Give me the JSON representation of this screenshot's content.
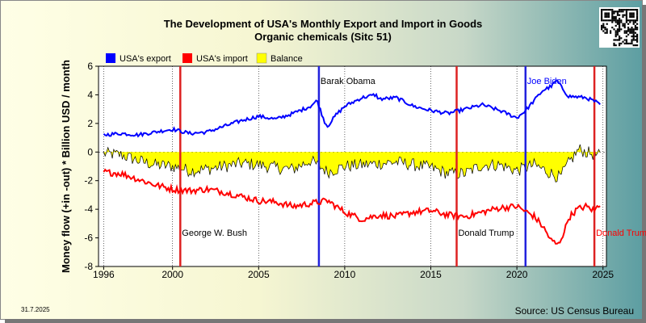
{
  "chart_data": {
    "type": "line",
    "title": "The Development of USA's Monthly Export and Import in Goods",
    "subtitle": "Organic chemicals (Sitc 51)",
    "ylabel": "Money flow (+in -out) * Billion USD / month",
    "xlabel": "",
    "xlim": [
      1995.7,
      2025.2
    ],
    "ylim": [
      -8,
      6
    ],
    "x_ticks": [
      "1996",
      "2000",
      "2005",
      "2010",
      "2015",
      "2020",
      "2025"
    ],
    "y_ticks": [
      "6",
      "4",
      "2",
      "0",
      "-2",
      "-4",
      "-6",
      "-8"
    ],
    "legend_position": "top-left",
    "grid": "vertical dotted at year marks",
    "series": [
      {
        "name": "USA's export",
        "color": "#0000ff",
        "points": [
          [
            1996,
            1.2
          ],
          [
            1997,
            1.3
          ],
          [
            1998,
            1.2
          ],
          [
            1999,
            1.4
          ],
          [
            2000,
            1.6
          ],
          [
            2001,
            1.3
          ],
          [
            2002,
            1.4
          ],
          [
            2003,
            1.8
          ],
          [
            2004,
            2.2
          ],
          [
            2005,
            2.5
          ],
          [
            2006,
            2.3
          ],
          [
            2007,
            2.7
          ],
          [
            2008,
            3.2
          ],
          [
            2008.4,
            3.6
          ],
          [
            2008.8,
            2.2
          ],
          [
            2009,
            1.8
          ],
          [
            2009.5,
            2.6
          ],
          [
            2010,
            3.2
          ],
          [
            2011,
            3.8
          ],
          [
            2011.8,
            4.0
          ],
          [
            2012,
            3.7
          ],
          [
            2013,
            3.8
          ],
          [
            2014,
            3.2
          ],
          [
            2015,
            2.9
          ],
          [
            2016,
            2.7
          ],
          [
            2017,
            3.0
          ],
          [
            2018,
            3.3
          ],
          [
            2019,
            2.9
          ],
          [
            2019.8,
            2.5
          ],
          [
            2020,
            2.4
          ],
          [
            2020.5,
            2.9
          ],
          [
            2021,
            3.6
          ],
          [
            2021.5,
            4.3
          ],
          [
            2022,
            4.6
          ],
          [
            2022.3,
            5.0
          ],
          [
            2022.8,
            4.2
          ],
          [
            2023,
            3.9
          ],
          [
            2024,
            3.8
          ],
          [
            2024.6,
            3.5
          ],
          [
            2024.9,
            3.2
          ]
        ]
      },
      {
        "name": "USA's import",
        "color": "#ff0000",
        "points": [
          [
            1996,
            -1.4
          ],
          [
            1997,
            -1.5
          ],
          [
            1998,
            -1.9
          ],
          [
            1999,
            -2.3
          ],
          [
            2000,
            -2.6
          ],
          [
            2001,
            -2.7
          ],
          [
            2002,
            -2.6
          ],
          [
            2003,
            -2.8
          ],
          [
            2004,
            -3.1
          ],
          [
            2005,
            -3.4
          ],
          [
            2006,
            -3.5
          ],
          [
            2007,
            -3.8
          ],
          [
            2008,
            -3.6
          ],
          [
            2009,
            -3.4
          ],
          [
            2010,
            -4.2
          ],
          [
            2011,
            -4.7
          ],
          [
            2012,
            -4.4
          ],
          [
            2013,
            -4.5
          ],
          [
            2014,
            -4.2
          ],
          [
            2015,
            -4.1
          ],
          [
            2016,
            -4.4
          ],
          [
            2017,
            -4.5
          ],
          [
            2018,
            -4.2
          ],
          [
            2019,
            -3.9
          ],
          [
            2020,
            -3.8
          ],
          [
            2021,
            -4.5
          ],
          [
            2021.5,
            -5.2
          ],
          [
            2022,
            -6.2
          ],
          [
            2022.4,
            -6.5
          ],
          [
            2022.8,
            -5.4
          ],
          [
            2023,
            -4.6
          ],
          [
            2023.5,
            -4.0
          ],
          [
            2024,
            -3.8
          ],
          [
            2024.5,
            -4.1
          ],
          [
            2024.9,
            -3.5
          ]
        ]
      },
      {
        "name": "Balance",
        "color": "#ffff00",
        "points": [
          [
            1996,
            -0.1
          ],
          [
            1997,
            -0.2
          ],
          [
            1998,
            -0.6
          ],
          [
            1999,
            -0.9
          ],
          [
            2000,
            -1.0
          ],
          [
            2001,
            -1.3
          ],
          [
            2002,
            -1.2
          ],
          [
            2003,
            -1.0
          ],
          [
            2004,
            -0.8
          ],
          [
            2005,
            -0.9
          ],
          [
            2006,
            -1.1
          ],
          [
            2007,
            -1.2
          ],
          [
            2008,
            -0.6
          ],
          [
            2008.8,
            -1.2
          ],
          [
            2009,
            -1.4
          ],
          [
            2010,
            -1.0
          ],
          [
            2011,
            -0.9
          ],
          [
            2012,
            -0.8
          ],
          [
            2013,
            -0.7
          ],
          [
            2014,
            -0.9
          ],
          [
            2015,
            -1.1
          ],
          [
            2016,
            -1.5
          ],
          [
            2017,
            -1.5
          ],
          [
            2018,
            -0.9
          ],
          [
            2019,
            -0.9
          ],
          [
            2020,
            -1.3
          ],
          [
            2021,
            -0.9
          ],
          [
            2022,
            -1.5
          ],
          [
            2022.5,
            -1.8
          ],
          [
            2023,
            -0.8
          ],
          [
            2023.6,
            0.2
          ],
          [
            2024,
            0.0
          ],
          [
            2024.9,
            -0.3
          ]
        ]
      }
    ],
    "events": [
      {
        "x": 2000.45,
        "color": "#dd2222",
        "label": "George W. Bush",
        "label_color": "#000000"
      },
      {
        "x": 2008.5,
        "color": "#2222dd",
        "label": "Barak Obama",
        "label_color": "#000000"
      },
      {
        "x": 2016.5,
        "color": "#dd2222",
        "label": "Donald Trump",
        "label_color": "#000000"
      },
      {
        "x": 2020.5,
        "color": "#2222dd",
        "label": "Joe Biden",
        "label_color": "#0000ff"
      },
      {
        "x": 2024.5,
        "color": "#dd2222",
        "label": "Donald Trump",
        "label_color": "#ff0000"
      }
    ]
  },
  "source": "Source: US Census Bureau",
  "date": "31.7.2025"
}
